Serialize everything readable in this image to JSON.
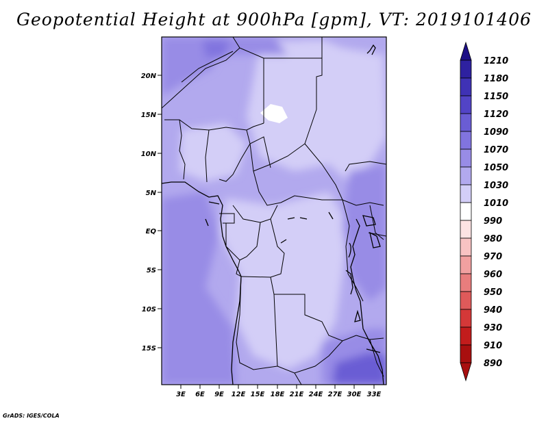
{
  "title": "Geopotential Height at 900hPa [gpm], VT: 2019101406",
  "credit": "GrADS: IGES/COLA",
  "map": {
    "lat_ticks": [
      "20N",
      "15N",
      "10N",
      "5N",
      "EQ",
      "5S",
      "10S",
      "15S"
    ],
    "lon_ticks": [
      "3E",
      "6E",
      "9E",
      "12E",
      "15E",
      "18E",
      "21E",
      "24E",
      "27E",
      "30E",
      "33E"
    ]
  },
  "colorbar": {
    "labels": [
      "1210",
      "1180",
      "1150",
      "1120",
      "1090",
      "1070",
      "1050",
      "1030",
      "1010",
      "990",
      "980",
      "970",
      "960",
      "950",
      "940",
      "930",
      "910",
      "890"
    ],
    "colors": [
      "#1d0f86",
      "#2e21a0",
      "#3f32b5",
      "#5244c6",
      "#6a5dd4",
      "#8174df",
      "#988ce6",
      "#b2a9ee",
      "#d3cef7",
      "#ffffff",
      "#fde3e3",
      "#f8c3c3",
      "#f1a0a0",
      "#e87d7d",
      "#df5a5a",
      "#d43838",
      "#c21c1c",
      "#a80f0f"
    ],
    "top_arrow_color": "#1d0f86",
    "bottom_arrow_color": "#a80f0f"
  }
}
